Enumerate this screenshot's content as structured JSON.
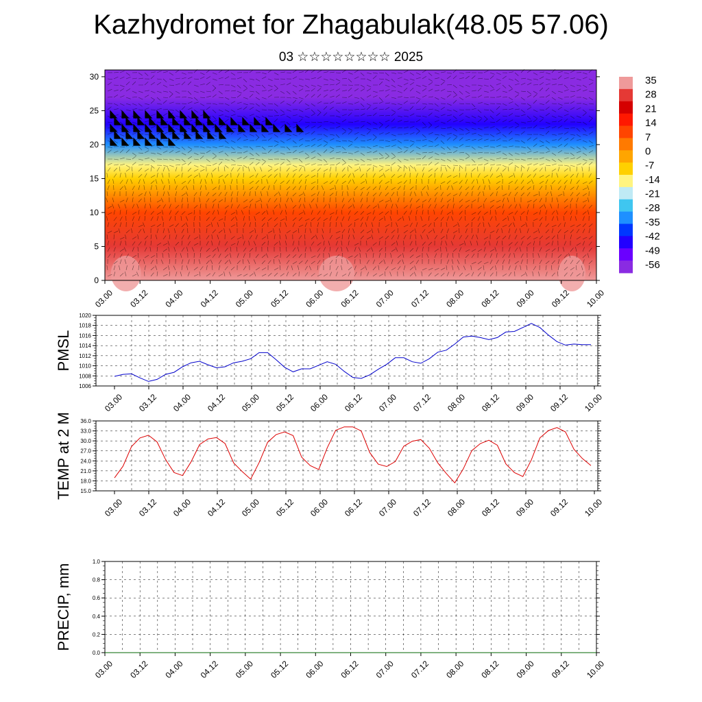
{
  "header": {
    "title": "Kazhydromet for Zhagabulak(48.05 57.06)",
    "subtitle": "03 ☆☆☆☆☆☆☆☆ 2025"
  },
  "chart_data": [
    {
      "type": "heatmap",
      "title": "Kazhydromet for Zhagabulak(48.05 57.06)",
      "subtitle": "03 ☆☆☆☆☆☆☆☆ 2025",
      "x_ticks": [
        "03.00",
        "03.12",
        "04.00",
        "04.12",
        "05.00",
        "05.12",
        "06.00",
        "06.12",
        "07.00",
        "07.12",
        "08.00",
        "08.12",
        "09.00",
        "09.12",
        "10.00"
      ],
      "y_ticks": [
        0,
        5,
        10,
        15,
        20,
        25,
        30
      ],
      "ylim": [
        0,
        31
      ],
      "colorbar": {
        "labels": [
          35,
          28,
          21,
          14,
          7,
          0,
          -7,
          -14,
          -21,
          -28,
          -35,
          -42,
          -49,
          -56
        ],
        "colors": [
          "#ef9a9a",
          "#e53935",
          "#d50000",
          "#ff1800",
          "#ff4500",
          "#ff7a00",
          "#ffa500",
          "#ffd000",
          "#fff480",
          "#bfeaf5",
          "#3fc6f0",
          "#1e90ff",
          "#0037ff",
          "#2200ff",
          "#6a00ff",
          "#8a2be2"
        ]
      },
      "overlay": "wind vectors and wind barbs",
      "profile": [
        {
          "h": 0,
          "t": 35
        },
        {
          "h": 5,
          "t": 28
        },
        {
          "h": 10,
          "t": 10
        },
        {
          "h": 15,
          "t": -7
        },
        {
          "h": 17,
          "t": -14
        },
        {
          "h": 20,
          "t": -30
        },
        {
          "h": 23,
          "t": -45
        },
        {
          "h": 27,
          "t": -55
        },
        {
          "h": 31,
          "t": -60
        }
      ]
    },
    {
      "type": "line",
      "ylabel": "PMSL",
      "ylim": [
        1006,
        1020
      ],
      "y_ticks": [
        1006,
        1008,
        1010,
        1012,
        1014,
        1016,
        1018,
        1020
      ],
      "x_ticks": [
        "03.00",
        "03.12",
        "04.00",
        "04.12",
        "05.00",
        "05.12",
        "06.00",
        "06.12",
        "07.00",
        "07.12",
        "08.00",
        "08.12",
        "09.00",
        "09.12",
        "10.00"
      ],
      "series": [
        {
          "color": "#0000cc",
          "values": [
            1007.9,
            1008.3,
            1008.4,
            1007.6,
            1006.9,
            1007.3,
            1008.3,
            1008.7,
            1009.8,
            1010.6,
            1010.9,
            1010.2,
            1009.6,
            1009.8,
            1010.6,
            1010.9,
            1011.4,
            1012.6,
            1012.6,
            1011.2,
            1009.7,
            1008.8,
            1009.4,
            1009.4,
            1010.1,
            1010.8,
            1010.3,
            1008.9,
            1007.7,
            1007.5,
            1008.2,
            1009.3,
            1010.3,
            1011.6,
            1011.6,
            1010.8,
            1010.5,
            1011.4,
            1012.7,
            1013.1,
            1014.3,
            1015.7,
            1015.9,
            1015.6,
            1015.2,
            1015.6,
            1016.7,
            1016.8,
            1017.6,
            1018.4,
            1017.6,
            1016.1,
            1014.8,
            1014.1,
            1014.3,
            1014.2,
            1014.2
          ]
        }
      ]
    },
    {
      "type": "line",
      "ylabel": "TEMP at 2 M",
      "ylim": [
        15,
        36
      ],
      "y_ticks": [
        15.0,
        18.0,
        21.0,
        24.0,
        27.0,
        30.0,
        33.0,
        36.0
      ],
      "x_ticks": [
        "03.00",
        "03.12",
        "04.00",
        "04.12",
        "05.00",
        "05.12",
        "06.00",
        "06.12",
        "07.00",
        "07.12",
        "08.00",
        "08.12",
        "09.00",
        "09.12",
        "10.00"
      ],
      "series": [
        {
          "color": "#dd0000",
          "values": [
            18.9,
            22.4,
            28.3,
            30.9,
            31.7,
            29.7,
            24.4,
            20.5,
            19.6,
            23.7,
            28.9,
            30.6,
            31.0,
            29.2,
            23.4,
            20.8,
            18.5,
            23.5,
            29.6,
            31.9,
            32.7,
            31.6,
            25.1,
            22.6,
            21.4,
            27.9,
            33.2,
            34.2,
            34.2,
            33.0,
            26.5,
            23.0,
            22.3,
            23.8,
            28.4,
            29.9,
            30.4,
            27.8,
            23.4,
            20.2,
            17.4,
            21.6,
            27.1,
            29.2,
            30.2,
            28.7,
            23.1,
            20.5,
            19.3,
            24.3,
            30.9,
            33.1,
            34.0,
            32.7,
            27.5,
            24.7,
            22.6
          ]
        }
      ]
    },
    {
      "type": "line",
      "ylabel": "PRECIP, mm",
      "ylim": [
        0,
        1.0
      ],
      "y_ticks": [
        0.0,
        0.2,
        0.4,
        0.6,
        0.8,
        1.0
      ],
      "x_ticks": [
        "03.00",
        "03.12",
        "04.00",
        "04.12",
        "05.00",
        "05.12",
        "06.00",
        "06.12",
        "07.00",
        "07.12",
        "08.00",
        "08.12",
        "09.00",
        "09.12",
        "10.00"
      ],
      "series": [
        {
          "color": "#006400",
          "values": [
            0,
            0,
            0,
            0,
            0,
            0,
            0,
            0,
            0,
            0,
            0,
            0,
            0,
            0,
            0,
            0,
            0,
            0,
            0,
            0,
            0,
            0,
            0,
            0,
            0,
            0,
            0,
            0,
            0,
            0,
            0,
            0,
            0,
            0,
            0,
            0,
            0,
            0,
            0,
            0,
            0,
            0,
            0,
            0,
            0,
            0,
            0,
            0,
            0,
            0,
            0,
            0,
            0,
            0,
            0,
            0,
            0
          ]
        }
      ]
    }
  ]
}
